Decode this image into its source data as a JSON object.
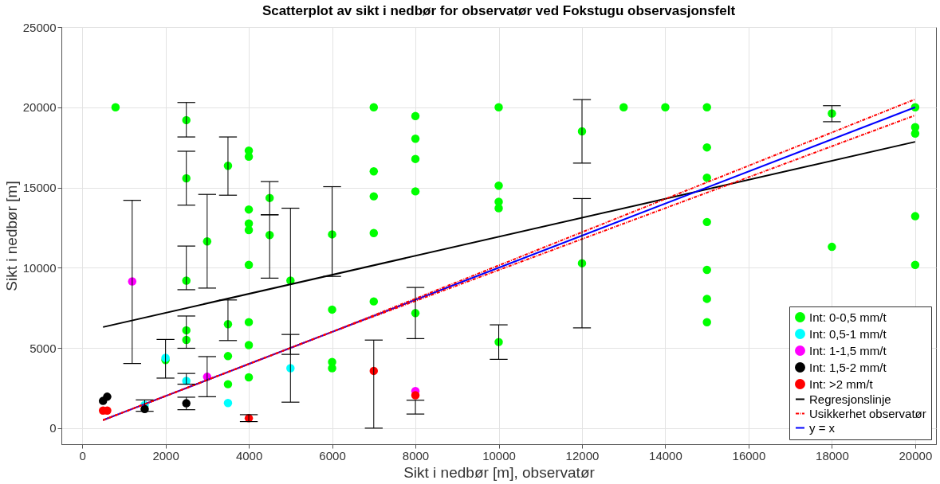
{
  "chart_data": {
    "type": "scatter",
    "title": "Scatterplot av sikt i nedbør for observatør ved Fokstugu observasjonsfelt",
    "xlabel": "Sikt i nedbør [m], observatør",
    "ylabel": "Sikt i nedbør [m]",
    "xlim": [
      -500,
      20500
    ],
    "ylim": [
      -1000,
      25000
    ],
    "xticks": [
      0,
      2000,
      4000,
      6000,
      8000,
      10000,
      12000,
      14000,
      16000,
      18000,
      20000
    ],
    "yticks": [
      0,
      5000,
      10000,
      15000,
      20000,
      25000
    ],
    "grid": true,
    "legend": "bottom right",
    "marker": "circle",
    "series": [
      {
        "name": "Int: 0-0,5 mm/t",
        "color": "#00ff00",
        "x": [
          800,
          2000,
          2500,
          2500,
          2500,
          2500,
          2500,
          3000,
          3500,
          3500,
          3500,
          3500,
          4000,
          4000,
          4000,
          4000,
          4000,
          4000,
          4000,
          4000,
          4000,
          4500,
          4500,
          5000,
          6000,
          6000,
          6000,
          6000,
          7000,
          7000,
          7000,
          7000,
          7000,
          8000,
          8000,
          8000,
          8000,
          8000,
          10000,
          10000,
          10000,
          10000,
          10000,
          12000,
          12000,
          13000,
          14000,
          15000,
          15000,
          15000,
          15000,
          15000,
          15000,
          15000,
          18000,
          18000,
          20000,
          20000,
          20000,
          20000,
          20000
        ],
        "values": [
          20000,
          4250,
          19200,
          15570,
          9200,
          6100,
          5500,
          11640,
          16350,
          6480,
          4490,
          2740,
          17300,
          16920,
          13630,
          12760,
          12350,
          10180,
          6610,
          5180,
          3170,
          14350,
          12040,
          9200,
          12080,
          7390,
          4120,
          3740,
          20000,
          16010,
          14450,
          12160,
          7900,
          19450,
          18040,
          16780,
          14760,
          7170,
          20000,
          15110,
          14110,
          13710,
          5370,
          18500,
          10280,
          20000,
          20000,
          20000,
          17500,
          15610,
          12850,
          9870,
          8060,
          6600,
          19620,
          11300,
          20000,
          18760,
          18360,
          13210,
          10180
        ],
        "errors": [
          null,
          null,
          [
            18150,
            20300
          ],
          [
            13900,
            17260
          ],
          [
            8630,
            11350
          ],
          [
            4980,
            6990
          ],
          null,
          [
            8730,
            14570
          ],
          [
            14520,
            18150
          ],
          [
            5460,
            7990
          ],
          null,
          null,
          null,
          null,
          null,
          null,
          null,
          null,
          null,
          null,
          null,
          [
            13300,
            15370
          ],
          [
            9350,
            13300
          ],
          [
            1620,
            13710
          ],
          [
            9460,
            15050
          ],
          null,
          null,
          null,
          null,
          null,
          null,
          null,
          null,
          null,
          null,
          null,
          null,
          [
            5580,
            8770
          ],
          null,
          null,
          null,
          null,
          [
            4290,
            6440
          ],
          [
            16520,
            20480
          ],
          [
            6250,
            14310
          ],
          null,
          null,
          null,
          null,
          null,
          null,
          null,
          null,
          null,
          [
            19100,
            20100
          ],
          null,
          null,
          null,
          null,
          null,
          null
        ]
      },
      {
        "name": "Int: 0,5-1 mm/t",
        "color": "#00ffff",
        "x": [
          1500,
          2000,
          2500,
          3500,
          5000
        ],
        "values": [
          1450,
          4380,
          2950,
          1570,
          3740
        ],
        "errors": [
          null,
          [
            3120,
            5530
          ],
          [
            2740,
            3410
          ],
          null,
          [
            4600,
            5840
          ]
        ]
      },
      {
        "name": "Int: 1-1,5 mm/t",
        "color": "#ff00ff",
        "x": [
          1200,
          3000,
          8000
        ],
        "values": [
          9150,
          3200,
          2310
        ],
        "errors": [
          [
            4030,
            14200
          ],
          [
            1960,
            4460
          ],
          null
        ]
      },
      {
        "name": "Int: 1,5-2 mm/t",
        "color": "#000000",
        "x": [
          500,
          600,
          1500,
          2500
        ],
        "values": [
          1700,
          1960,
          1190,
          1550
        ],
        "errors": [
          null,
          null,
          [
            1050,
            1760
          ],
          [
            1150,
            1930
          ]
        ]
      },
      {
        "name": "Int: >2 mm/t",
        "color": "#ff0000",
        "x": [
          500,
          600,
          4000,
          7000,
          8000
        ],
        "values": [
          1100,
          1100,
          620,
          3570,
          2050
        ],
        "errors": [
          null,
          null,
          [
            410,
            840
          ],
          [
            0,
            5490
          ],
          [
            880,
            1740
          ]
        ]
      },
      {
        "name": "Regresjonslinje",
        "color": "#000000",
        "type": "line",
        "line_style": "solid",
        "marker": "none",
        "x": [
          500,
          20000
        ],
        "values": [
          6300,
          17850
        ]
      },
      {
        "name": "Usikkerhet observatør",
        "color": "#ff0000",
        "type": "line",
        "line_style": "dashed",
        "marker": "none",
        "x": [
          500,
          6000,
          20000
        ],
        "values": [
          500,
          6000,
          20500
        ]
      },
      {
        "color": "#ff0000",
        "type": "line",
        "line_style": "dashed",
        "marker": "none",
        "x": [
          500,
          6000,
          20000
        ],
        "values": [
          500,
          6000,
          19500
        ]
      },
      {
        "name": "y = x",
        "color": "#0000ff",
        "type": "line",
        "line_style": "solid",
        "marker": "none",
        "x": [
          500,
          20000
        ],
        "values": [
          500,
          20000
        ]
      }
    ]
  }
}
